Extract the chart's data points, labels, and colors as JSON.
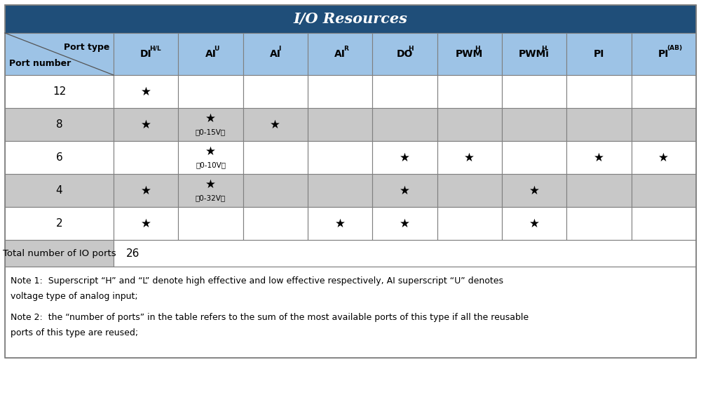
{
  "title": "I/O Resources",
  "title_bg": "#1F4E79",
  "title_color": "#FFFFFF",
  "header_bg": "#9DC3E6",
  "row_bg_white": "#FFFFFF",
  "row_bg_gray": "#C8C8C8",
  "total_bg_left": "#C8C8C8",
  "total_bg_right": "#FFFFFF",
  "note_bg": "#FFFFFF",
  "border_color": "#7F7F7F",
  "col_headers": [
    {
      "text": "DI",
      "sup": "H/L"
    },
    {
      "text": "AI",
      "sup": "U"
    },
    {
      "text": "AI",
      "sup": "I"
    },
    {
      "text": "AI",
      "sup": "R"
    },
    {
      "text": "DO",
      "sup": "H"
    },
    {
      "text": "PWM",
      "sup": "H"
    },
    {
      "text": "PWMi",
      "sup": "H"
    },
    {
      "text": "PI",
      "sup": ""
    },
    {
      "text": "PI",
      "sup": "(AB)"
    }
  ],
  "port_numbers": [
    12,
    8,
    6,
    4,
    2
  ],
  "row_colors": [
    "#FFFFFF",
    "#C8C8C8",
    "#FFFFFF",
    "#C8C8C8",
    "#FFFFFF"
  ],
  "stars": {
    "12": [
      0
    ],
    "8": [
      0,
      1,
      2
    ],
    "6": [
      1,
      4,
      5,
      7,
      8
    ],
    "4": [
      0,
      1,
      4,
      6
    ],
    "2": [
      0,
      3,
      4,
      6
    ]
  },
  "ai_u_labels": {
    "8": "（0-15V）",
    "6": "（0-10V）",
    "4": "（0-32V）"
  },
  "total_label": "Total number of IO ports",
  "total_value": "26",
  "note1_line1": "Note 1:  Superscript “H” and “L” denote high effective and low effective respectively, AI superscript “U” denotes",
  "note1_line2": "voltage type of analog input;",
  "note2_line1": "Note 2:  the “number of ports” in the table refers to the sum of the most available ports of this type if all the reusable",
  "note2_line2": "ports of this type are reused;"
}
